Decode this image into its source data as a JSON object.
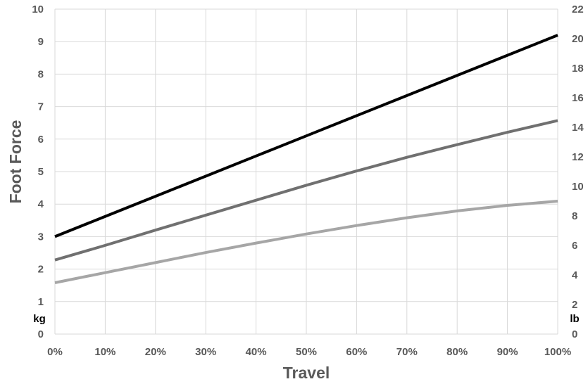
{
  "chart_data": {
    "type": "line",
    "xlabel": "Travel",
    "ylabel": "Foot Force",
    "x": [
      0,
      10,
      20,
      30,
      40,
      50,
      60,
      70,
      80,
      90,
      100
    ],
    "x_tick_labels": [
      "0%",
      "10%",
      "20%",
      "30%",
      "40%",
      "50%",
      "60%",
      "70%",
      "80%",
      "90%",
      "100%"
    ],
    "xlim": [
      0,
      100
    ],
    "y_left": {
      "unit_label": "kg",
      "lim": [
        0,
        10
      ],
      "ticks": [
        0,
        1,
        2,
        3,
        4,
        5,
        6,
        7,
        8,
        9,
        10
      ]
    },
    "y_right": {
      "unit_label": "lb",
      "lim": [
        0,
        22
      ],
      "ticks": [
        0,
        2,
        4,
        6,
        8,
        10,
        12,
        14,
        16,
        18,
        20,
        22
      ]
    },
    "grid": true,
    "series": [
      {
        "color": "#000000",
        "values": [
          3.0,
          3.62,
          4.24,
          4.86,
          5.48,
          6.1,
          6.72,
          7.34,
          7.96,
          8.58,
          9.2
        ]
      },
      {
        "color": "#707070",
        "values": [
          2.28,
          2.73,
          3.2,
          3.66,
          4.12,
          4.58,
          5.02,
          5.44,
          5.83,
          6.21,
          6.57
        ]
      },
      {
        "color": "#a6a6a6",
        "values": [
          1.58,
          1.89,
          2.2,
          2.51,
          2.8,
          3.08,
          3.34,
          3.58,
          3.79,
          3.96,
          4.09
        ]
      }
    ]
  }
}
